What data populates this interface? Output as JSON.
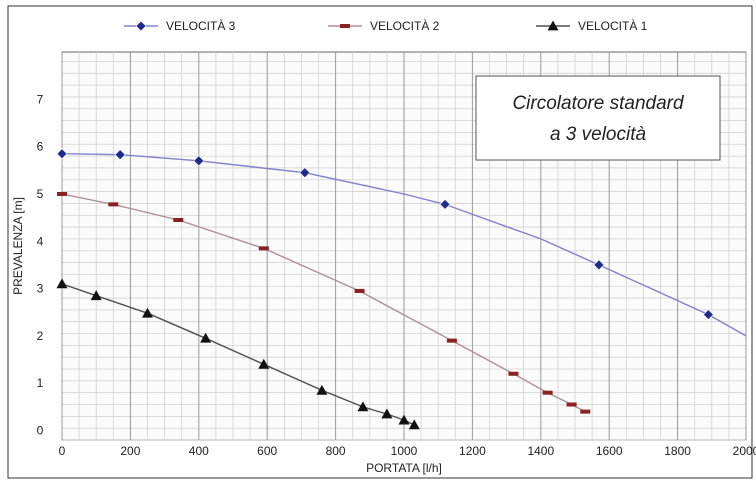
{
  "chart_data": {
    "type": "line",
    "title": "",
    "xlabel": "PORTATA  [l/h]",
    "ylabel": "PREVALENZA  [m]",
    "xlim": [
      0,
      2000
    ],
    "ylim": [
      -0.2,
      8
    ],
    "xticks": [
      "0",
      "200",
      "400",
      "600",
      "800",
      "1000",
      "1200",
      "1400",
      "1600",
      "1800",
      "2000"
    ],
    "yticks": [
      "0",
      "1",
      "2",
      "3",
      "4",
      "5",
      "6",
      "7"
    ],
    "grid": true,
    "legend_position": "top",
    "annotation": [
      "Circolatore standard",
      "a 3 velocità"
    ],
    "series": [
      {
        "name": "VELOCITÀ 3",
        "marker": "diamond",
        "color": "#8080d0",
        "marker_color": "#1e2a8c",
        "x": [
          0,
          170,
          400,
          710,
          1000,
          1120,
          1400,
          1570,
          1890,
          2000
        ],
        "y": [
          5.85,
          5.83,
          5.7,
          5.45,
          5.0,
          4.78,
          4.05,
          3.5,
          2.45,
          2.0
        ],
        "marker_x": [
          0,
          170,
          400,
          710,
          1120,
          1570,
          1890
        ],
        "marker_y": [
          5.85,
          5.83,
          5.7,
          5.45,
          4.78,
          3.5,
          2.45
        ]
      },
      {
        "name": "VELOCITÀ 2",
        "marker": "dash",
        "color": "#b09098",
        "marker_color": "#8a2020",
        "x": [
          0,
          150,
          340,
          590,
          870,
          1140,
          1320,
          1420,
          1490,
          1530
        ],
        "y": [
          5.0,
          4.78,
          4.45,
          3.85,
          2.95,
          1.9,
          1.2,
          0.8,
          0.55,
          0.4
        ],
        "marker_x": [
          0,
          150,
          340,
          590,
          870,
          1140,
          1320,
          1420,
          1490,
          1530
        ],
        "marker_y": [
          5.0,
          4.78,
          4.45,
          3.85,
          2.95,
          1.9,
          1.2,
          0.8,
          0.55,
          0.4
        ]
      },
      {
        "name": "VELOCITÀ 1",
        "marker": "triangle",
        "color": "#505050",
        "marker_color": "#111111",
        "x": [
          0,
          100,
          250,
          420,
          590,
          760,
          880,
          950,
          1000,
          1030
        ],
        "y": [
          3.1,
          2.85,
          2.48,
          1.95,
          1.4,
          0.85,
          0.5,
          0.35,
          0.22,
          0.12
        ],
        "marker_x": [
          0,
          100,
          250,
          420,
          590,
          760,
          880,
          950,
          1000,
          1030
        ],
        "marker_y": [
          3.1,
          2.85,
          2.48,
          1.95,
          1.4,
          0.85,
          0.5,
          0.35,
          0.22,
          0.12
        ]
      }
    ]
  }
}
